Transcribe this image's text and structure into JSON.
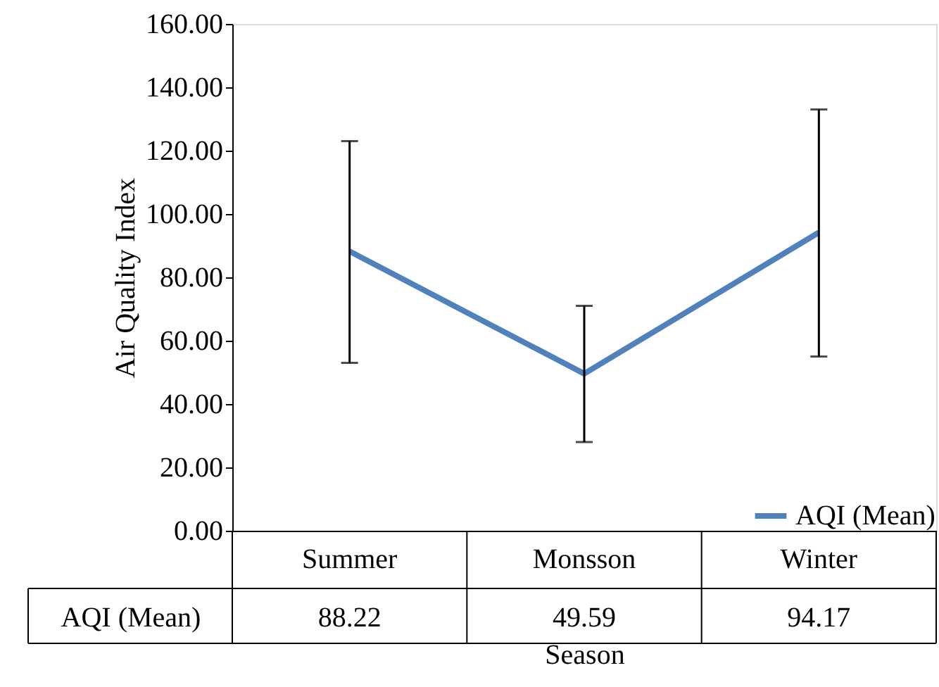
{
  "chart_data": {
    "type": "line",
    "xlabel": "Season",
    "ylabel": "Air Quality Index",
    "categories": [
      "Summer",
      "Monsson",
      "Winter"
    ],
    "series": [
      {
        "name": "AQI (Mean)",
        "color": "#4f81bd",
        "values": [
          88.22,
          49.59,
          94.17
        ],
        "errors": [
          [
            53,
            123
          ],
          [
            28,
            71
          ],
          [
            55,
            133
          ]
        ]
      }
    ],
    "ylim": [
      0,
      160
    ],
    "yticks": [
      {
        "value": 0,
        "label": "0.00"
      },
      {
        "value": 20,
        "label": "20.00"
      },
      {
        "value": 40,
        "label": "40.00"
      },
      {
        "value": 60,
        "label": "60.00"
      },
      {
        "value": 80,
        "label": "80.00"
      },
      {
        "value": 100,
        "label": "100.00"
      },
      {
        "value": 120,
        "label": "120.00"
      },
      {
        "value": 140,
        "label": "140.00"
      },
      {
        "value": 160,
        "label": "160.00"
      }
    ],
    "grid": false,
    "legend": "bottom right",
    "marker": "none",
    "line_style": "solid",
    "data_labels": true
  }
}
